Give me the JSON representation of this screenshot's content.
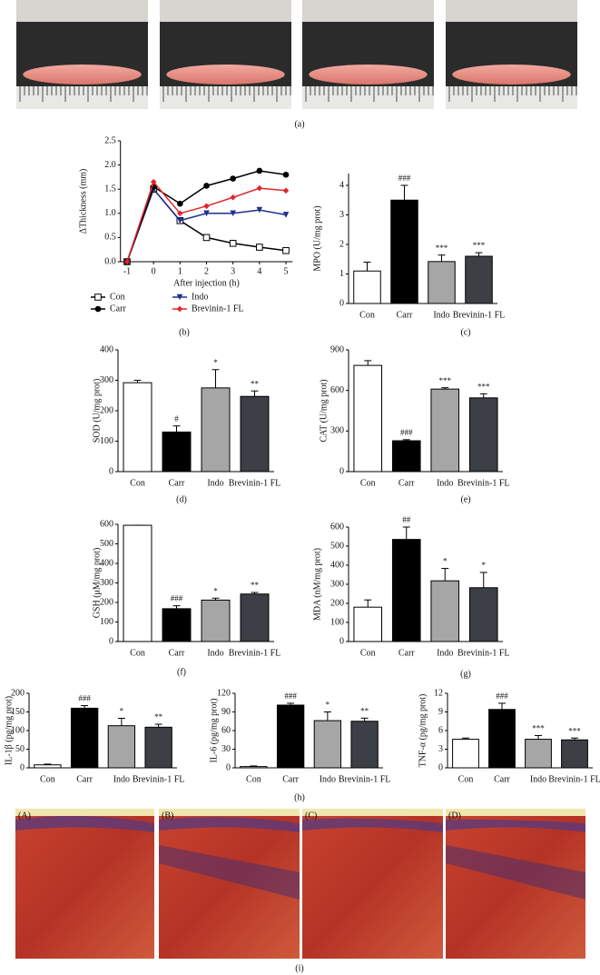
{
  "panel_labels": [
    "(a)",
    "(b)",
    "(c)",
    "(d)",
    "(e)",
    "(f)",
    "(g)",
    "(h)",
    "(i)"
  ],
  "histology": {
    "labels": [
      "(A)",
      "(B)",
      "(C)",
      "(D)"
    ]
  },
  "chart_data": [
    {
      "type": "line",
      "ylabel": "ΔThickness (mm)",
      "xlabel": "After injection (h)",
      "x": [
        -1,
        0,
        1,
        2,
        3,
        4,
        5
      ],
      "xlim": [
        -1.25,
        5.25
      ],
      "xticks": [
        -1,
        0,
        1,
        2,
        3,
        4,
        5
      ],
      "ylim": [
        0,
        2.5
      ],
      "yticks": [
        {
          "value": 0,
          "label": "0.0"
        },
        0.5,
        {
          "value": 1,
          "label": "1.0"
        },
        1.5,
        {
          "value": 2,
          "label": "2.0"
        },
        2.5
      ],
      "series": [
        {
          "name": "Con",
          "color": "#000000",
          "marker": "square-open",
          "values": [
            0,
            1.5,
            0.85,
            0.5,
            0.38,
            0.3,
            0.23
          ]
        },
        {
          "name": "Indo",
          "color": "#1f2f8f",
          "marker": "triangle-down",
          "values": [
            0,
            1.5,
            0.85,
            1.0,
            1.0,
            1.07,
            0.97
          ]
        },
        {
          "name": "Carr",
          "color": "#000000",
          "marker": "circle",
          "values": [
            0,
            1.55,
            1.2,
            1.57,
            1.72,
            1.88,
            1.8
          ]
        },
        {
          "name": "Brevinin-1 FL",
          "color": "#e0262b",
          "marker": "diamond",
          "values": [
            0,
            1.65,
            1.0,
            1.15,
            1.33,
            1.52,
            1.47
          ]
        }
      ]
    },
    {
      "type": "bar",
      "ylabel": "MPO (U/mg prot)",
      "categories": [
        "Con",
        "Carr",
        "Indo",
        "Brevinin-1 FL"
      ],
      "values": [
        1.1,
        3.5,
        1.42,
        1.6
      ],
      "errors": [
        0.3,
        0.5,
        0.22,
        0.12
      ],
      "annotations": [
        null,
        "###",
        "***",
        "***"
      ],
      "colors": [
        "#ffffff",
        "#000000",
        "#a6a6a6",
        "#3c3f45"
      ],
      "ylim": [
        0,
        4.4
      ],
      "yticks": [
        0,
        1,
        2,
        3,
        4
      ]
    },
    {
      "type": "bar",
      "ylabel": "SOD (U/mg prot)",
      "categories": [
        "Con",
        "Carr",
        "Indo",
        "Brevinin-1 FL"
      ],
      "values": [
        292,
        130,
        275,
        247
      ],
      "errors": [
        8,
        20,
        60,
        18
      ],
      "annotations": [
        null,
        "#",
        "*",
        "**"
      ],
      "colors": [
        "#ffffff",
        "#000000",
        "#a6a6a6",
        "#3c3f45"
      ],
      "ylim": [
        0,
        400
      ],
      "yticks": [
        0,
        100,
        200,
        300,
        400
      ]
    },
    {
      "type": "bar",
      "ylabel": "CAT (U/mg prot)",
      "categories": [
        "Con",
        "Carr",
        "Indo",
        "Brevinin-1 FL"
      ],
      "values": [
        785,
        228,
        610,
        545
      ],
      "errors": [
        35,
        8,
        10,
        30
      ],
      "annotations": [
        null,
        "###",
        "***",
        "***"
      ],
      "colors": [
        "#ffffff",
        "#000000",
        "#a6a6a6",
        "#3c3f45"
      ],
      "ylim": [
        0,
        900
      ],
      "yticks": [
        0,
        300,
        600,
        900
      ]
    },
    {
      "type": "bar",
      "ylabel": "GSH (μM/mg prot)",
      "categories": [
        "Con",
        "Carr",
        "Indo",
        "Brevinin-1 FL"
      ],
      "values": [
        595,
        168,
        212,
        243
      ],
      "errors": [
        0,
        15,
        10,
        8
      ],
      "annotations": [
        null,
        "###",
        "*",
        "**"
      ],
      "colors": [
        "#ffffff",
        "#000000",
        "#a6a6a6",
        "#3c3f45"
      ],
      "ylim": [
        0,
        600
      ],
      "yticks": [
        0,
        100,
        200,
        300,
        400,
        500,
        600
      ]
    },
    {
      "type": "bar",
      "ylabel": "MDA (nM/mg prot)",
      "categories": [
        "Con",
        "Carr",
        "Indo",
        "Brevinin-1 FL"
      ],
      "values": [
        180,
        535,
        318,
        282
      ],
      "errors": [
        38,
        65,
        65,
        80
      ],
      "annotations": [
        null,
        "##",
        "*",
        "*"
      ],
      "colors": [
        "#ffffff",
        "#000000",
        "#a6a6a6",
        "#3c3f45"
      ],
      "ylim": [
        0,
        600
      ],
      "yticks": [
        0,
        100,
        200,
        300,
        400,
        500,
        600
      ]
    },
    {
      "type": "bar",
      "ylabel": "IL-1β (pg/mg prot)",
      "categories": [
        "Con",
        "Carr",
        "Indo",
        "Brevinin-1 FL"
      ],
      "values": [
        8,
        160,
        113,
        109
      ],
      "errors": [
        2,
        7,
        20,
        8
      ],
      "annotations": [
        null,
        "###",
        "*",
        "**"
      ],
      "colors": [
        "#ffffff",
        "#000000",
        "#a6a6a6",
        "#3c3f45"
      ],
      "ylim": [
        0,
        200
      ],
      "yticks": [
        0,
        50,
        100,
        150,
        200
      ]
    },
    {
      "type": "bar",
      "ylabel": "IL-6 (pg/mg prot)",
      "categories": [
        "Con",
        "Carr",
        "Indo",
        "Brevinin-1 FL"
      ],
      "values": [
        2,
        101,
        76,
        75
      ],
      "errors": [
        1,
        3,
        14,
        5
      ],
      "annotations": [
        null,
        "###",
        "*",
        "**"
      ],
      "colors": [
        "#ffffff",
        "#000000",
        "#a6a6a6",
        "#3c3f45"
      ],
      "ylim": [
        0,
        120
      ],
      "yticks": [
        0,
        30,
        60,
        90,
        120
      ]
    },
    {
      "type": "bar",
      "ylabel": "TNF-α (pg/mg prot)",
      "categories": [
        "Con",
        "Carr",
        "Indo",
        "Brevinin-1 FL"
      ],
      "values": [
        4.6,
        9.4,
        4.6,
        4.5
      ],
      "errors": [
        0.2,
        1.0,
        0.6,
        0.3
      ],
      "annotations": [
        null,
        "###",
        "***",
        "***"
      ],
      "colors": [
        "#ffffff",
        "#000000",
        "#a6a6a6",
        "#3c3f45"
      ],
      "ylim": [
        0,
        12
      ],
      "yticks": [
        0,
        3,
        6,
        9,
        12
      ]
    }
  ]
}
